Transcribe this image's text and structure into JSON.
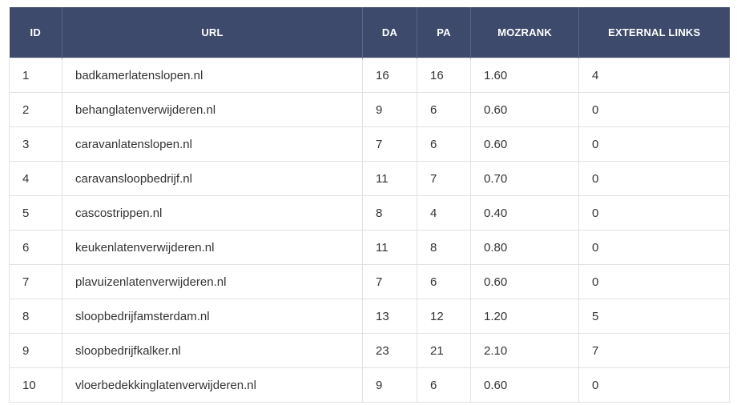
{
  "table": {
    "headers": [
      "ID",
      "URL",
      "DA",
      "PA",
      "MOZRANK",
      "EXTERNAL LINKS"
    ],
    "rows": [
      [
        "1",
        "badkamerlatenslopen.nl",
        "16",
        "16",
        "1.60",
        "4"
      ],
      [
        "2",
        "behanglatenverwijderen.nl",
        "9",
        "6",
        "0.60",
        "0"
      ],
      [
        "3",
        "caravanlatenslopen.nl",
        "7",
        "6",
        "0.60",
        "0"
      ],
      [
        "4",
        "caravansloopbedrijf.nl",
        "11",
        "7",
        "0.70",
        "0"
      ],
      [
        "5",
        "cascostrippen.nl",
        "8",
        "4",
        "0.40",
        "0"
      ],
      [
        "6",
        "keukenlatenverwijderen.nl",
        "11",
        "8",
        "0.80",
        "0"
      ],
      [
        "7",
        "plavuizenlatenverwijderen.nl",
        "7",
        "6",
        "0.60",
        "0"
      ],
      [
        "8",
        "sloopbedrijfamsterdam.nl",
        "13",
        "12",
        "1.20",
        "5"
      ],
      [
        "9",
        "sloopbedrijfkalker.nl",
        "23",
        "21",
        "2.10",
        "7"
      ],
      [
        "10",
        "vloerbedekkinglatenverwijderen.nl",
        "9",
        "6",
        "0.60",
        "0"
      ]
    ]
  },
  "colors": {
    "header_bg": "#3d4a6b",
    "header_text": "#ffffff",
    "cell_text": "#333333",
    "border": "#e2e2e2"
  }
}
